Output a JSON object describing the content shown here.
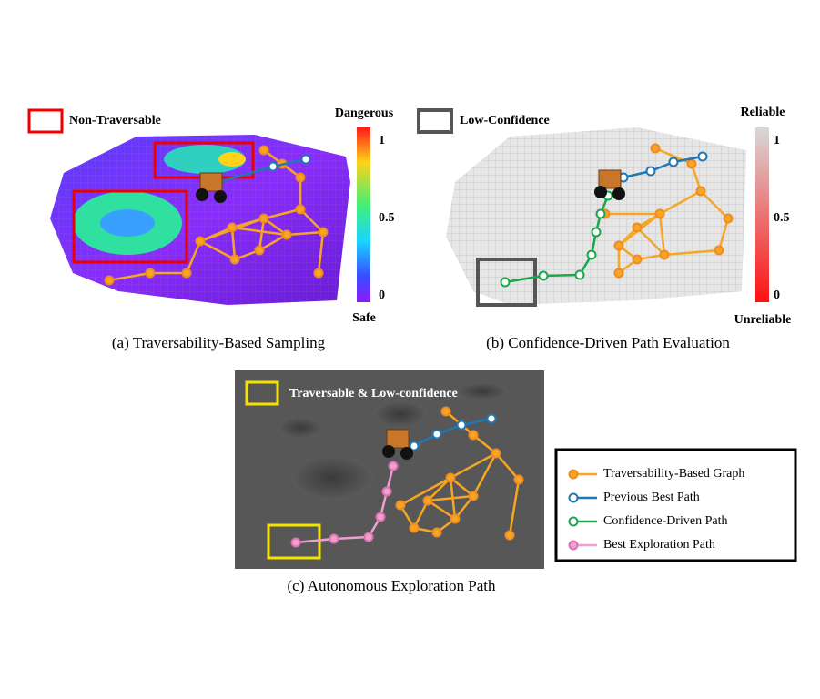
{
  "panel_a": {
    "legend_label": "Non-Traversable",
    "colorbar_top": "Dangerous",
    "colorbar_bottom": "Safe",
    "colorbar_ticks": [
      1,
      0.5,
      0
    ],
    "caption": "(a) Traversability-Based Sampling"
  },
  "panel_b": {
    "legend_label": "Low-Confidence",
    "colorbar_top": "Reliable",
    "colorbar_bottom": "Unreliable",
    "colorbar_ticks": [
      1,
      0.5,
      0
    ],
    "caption": "(b) Confidence-Driven Path Evaluation"
  },
  "panel_c": {
    "legend_label": "Traversable & Low-confidence",
    "caption": "(c) Autonomous Exploration Path"
  },
  "legend": {
    "items": [
      "Traversability-Based Graph",
      "Previous Best Path",
      "Confidence-Driven Path",
      "Best Exploration Path"
    ]
  }
}
